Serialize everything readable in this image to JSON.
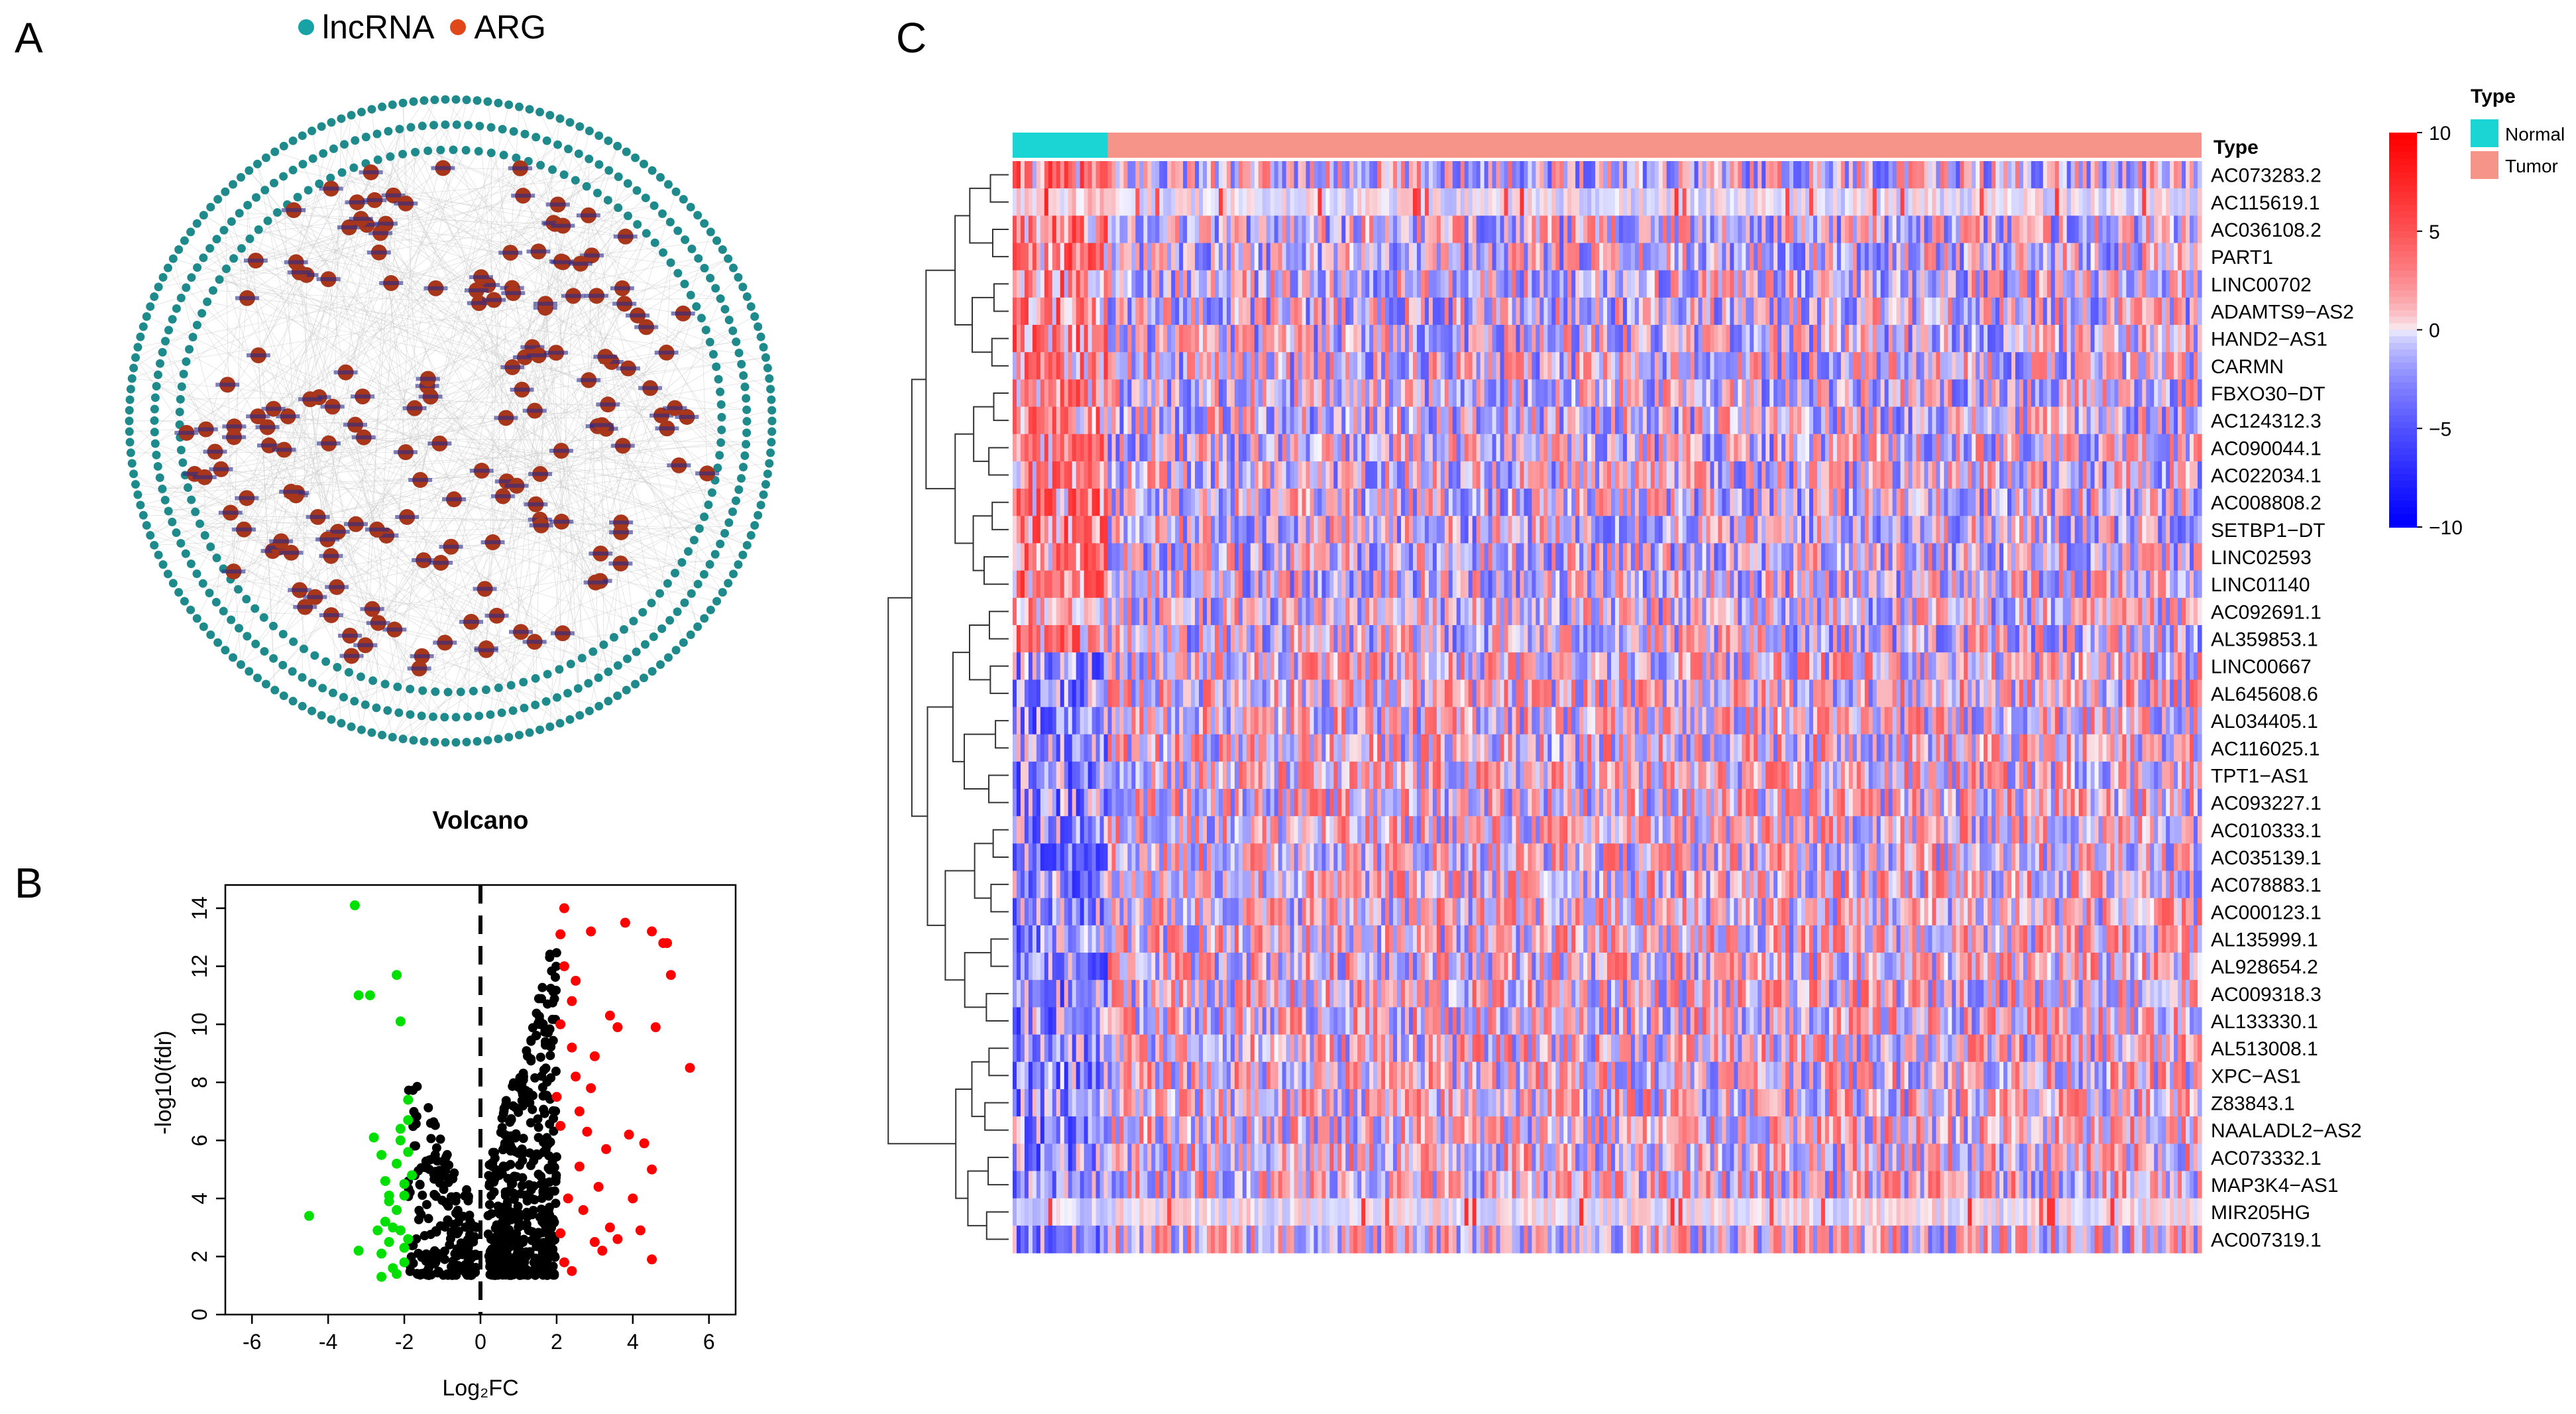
{
  "panels": {
    "a": "A",
    "b": "B",
    "c": "C"
  },
  "network": {
    "legend": [
      {
        "label": "lncRNA",
        "color": "#17a2a6"
      },
      {
        "label": "ARG",
        "color": "#e0481a"
      }
    ],
    "colors": {
      "lncrna_node": "#1e8a8c",
      "arg_node": "#a8361a",
      "edge": "#c8c8c8",
      "label": "#2b2b8a"
    }
  },
  "chart_data": [
    {
      "type": "scatter",
      "title": "Volcano",
      "xlabel": "Log₂FC",
      "ylabel": "-log10(fdr)",
      "xlim": [
        -6.7,
        6.7
      ],
      "ylim": [
        0,
        14.8
      ],
      "xticks": [
        -6,
        -4,
        -2,
        0,
        2,
        4,
        6
      ],
      "yticks": [
        0,
        2,
        4,
        6,
        8,
        10,
        12,
        14
      ],
      "vline": 0,
      "series": [
        {
          "color": "#00e000",
          "points": [
            [
              -3.3,
              14.1
            ],
            [
              -3.2,
              11.0
            ],
            [
              -2.9,
              11.0
            ],
            [
              -2.2,
              11.7
            ],
            [
              -2.1,
              10.1
            ],
            [
              -1.9,
              6.7
            ],
            [
              -4.5,
              3.4
            ],
            [
              -3.2,
              2.2
            ],
            [
              -2.6,
              5.5
            ],
            [
              -2.6,
              1.3
            ],
            [
              -2.4,
              4.1
            ],
            [
              -2.3,
              3.0
            ],
            [
              -2.1,
              6.0
            ],
            [
              -2.0,
              4.5
            ],
            [
              -2.0,
              2.3
            ],
            [
              -1.9,
              7.4
            ],
            [
              -2.8,
              6.1
            ],
            [
              -2.7,
              2.9
            ],
            [
              -2.5,
              3.2
            ],
            [
              -2.4,
              2.5
            ],
            [
              -2.2,
              3.6
            ],
            [
              -2.2,
              5.2
            ],
            [
              -2.0,
              1.8
            ],
            [
              -1.9,
              5.6
            ],
            [
              -2.6,
              2.1
            ],
            [
              -2.3,
              1.6
            ],
            [
              -2.1,
              2.9
            ],
            [
              -2.0,
              4.1
            ],
            [
              -1.8,
              4.8
            ],
            [
              -2.4,
              3.9
            ],
            [
              -2.1,
              6.4
            ],
            [
              -1.9,
              2.6
            ],
            [
              -2.2,
              1.4
            ],
            [
              -2.5,
              4.6
            ]
          ]
        },
        {
          "color": "#ff0000",
          "points": [
            [
              4.8,
              12.8
            ],
            [
              4.9,
              12.8
            ],
            [
              5.0,
              11.7
            ],
            [
              4.5,
              13.2
            ],
            [
              3.8,
              13.5
            ],
            [
              2.9,
              13.2
            ],
            [
              2.2,
              14.0
            ],
            [
              2.1,
              13.1
            ],
            [
              2.2,
              12.0
            ],
            [
              2.5,
              11.5
            ],
            [
              2.4,
              10.8
            ],
            [
              2.1,
              10.0
            ],
            [
              3.4,
              10.3
            ],
            [
              3.6,
              9.9
            ],
            [
              4.6,
              9.9
            ],
            [
              5.5,
              8.5
            ],
            [
              3.0,
              8.9
            ],
            [
              2.9,
              7.8
            ],
            [
              3.9,
              6.2
            ],
            [
              4.3,
              5.9
            ],
            [
              4.5,
              5.0
            ],
            [
              4.0,
              4.0
            ],
            [
              4.2,
              2.9
            ],
            [
              4.5,
              1.9
            ],
            [
              3.0,
              2.5
            ],
            [
              3.4,
              3.0
            ],
            [
              3.2,
              2.2
            ],
            [
              2.4,
              1.5
            ],
            [
              2.1,
              2.8
            ],
            [
              2.3,
              4.0
            ],
            [
              2.6,
              5.1
            ],
            [
              2.8,
              6.3
            ],
            [
              3.3,
              5.7
            ],
            [
              2.0,
              7.5
            ],
            [
              2.5,
              8.2
            ],
            [
              2.1,
              6.5
            ],
            [
              2.7,
              3.6
            ],
            [
              3.1,
              4.4
            ],
            [
              2.2,
              1.8
            ],
            [
              3.6,
              2.6
            ],
            [
              2.4,
              9.2
            ],
            [
              2.6,
              7.0
            ]
          ]
        }
      ]
    },
    {
      "type": "heatmap",
      "legend_title": "Type",
      "annotation_label": "Type",
      "groups": [
        {
          "label": "Normal",
          "color": "#1bd4d4",
          "fraction": 0.08
        },
        {
          "label": "Tumor",
          "color": "#f7948a",
          "fraction": 0.92
        }
      ],
      "rows": [
        "AC073283.2",
        "AC115619.1",
        "AC036108.2",
        "PART1",
        "LINC00702",
        "ADAMTS9−AS2",
        "HAND2−AS1",
        "CARMN",
        "FBXO30−DT",
        "AC124312.3",
        "AC090044.1",
        "AC022034.1",
        "AC008808.2",
        "SETBP1−DT",
        "LINC02593",
        "LINC01140",
        "AC092691.1",
        "AL359853.1",
        "LINC00667",
        "AL645608.6",
        "AL034405.1",
        "AC116025.1",
        "TPT1−AS1",
        "AC093227.1",
        "AC010333.1",
        "AC035139.1",
        "AC078883.1",
        "AC000123.1",
        "AL135999.1",
        "AL928654.2",
        "AC009318.3",
        "AL133330.1",
        "AL513008.1",
        "XPC−AS1",
        "Z83843.1",
        "NAALADL2−AS2",
        "AC073332.1",
        "MAP3K4−AS1",
        "MIR205HG",
        "AC007319.1"
      ],
      "color_scale": {
        "min": -10,
        "max": 10,
        "ticks": [
          10,
          5,
          0,
          -5,
          -10
        ],
        "low": "#0000ff",
        "mid": "#f8f8ff",
        "high": "#ff0000"
      }
    }
  ]
}
